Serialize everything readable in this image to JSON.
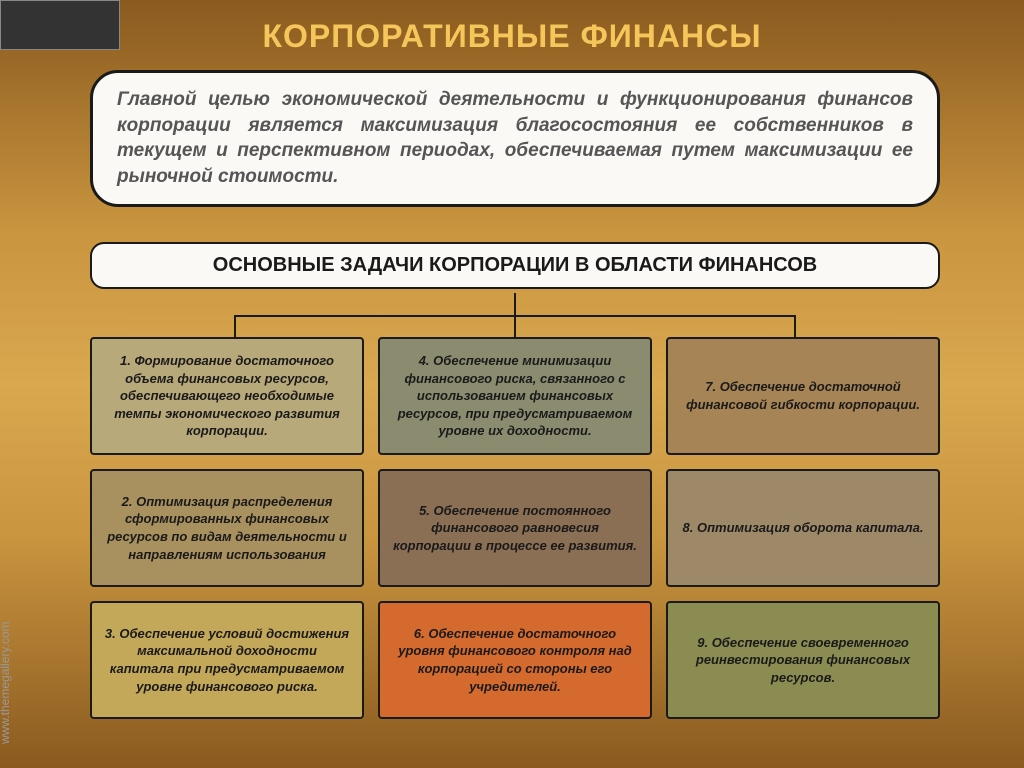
{
  "title": "КОРПОРАТИВНЫЕ ФИНАНСЫ",
  "intro": "Главной целью экономической деятельности и функционирования финансов корпорации является максимизация благосостояния ее собственников в текущем и перспективном периодах, обеспечиваемая путем максимизации ее рыночной стоимости.",
  "subheader": "ОСНОВНЫЕ ЗАДАЧИ КОРПОРАЦИИ В ОБЛАСТИ ФИНАНСОВ",
  "watermark": "www.themegallery.com",
  "grid": {
    "cells": [
      {
        "text": "1. Формирование достаточного объема финансовых ресурсов, обеспечивающего необходимые темпы экономического развития корпорации.",
        "bg": "#b8a97a"
      },
      {
        "text": "4. Обеспечение минимизации финансового риска, связанного с использованием финансовых ресурсов, при предусматриваемом уровне их доходности.",
        "bg": "#8b8c6f"
      },
      {
        "text": "7. Обеспечение достаточной финансовой гибкости корпорации.",
        "bg": "#a68456"
      },
      {
        "text": "2. Оптимизация распределения сформированных финансовых ресурсов по видам деятельности и направлениям использования",
        "bg": "#a9915f"
      },
      {
        "text": "5. Обеспечение постоянного финансового равновесия корпорации в процессе ее развития.",
        "bg": "#8a6f54"
      },
      {
        "text": "8. Оптимизация оборота капитала.",
        "bg": "#9d8868"
      },
      {
        "text": "3. Обеспечение условий достижения максимальной доходности капитала при предусматриваемом уровне финансового риска.",
        "bg": "#c4a85a"
      },
      {
        "text": "6. Обеспечение достаточного уровня финансового контроля над корпорацией со стороны его учредителей.",
        "bg": "#d56a2e"
      },
      {
        "text": "9. Обеспечение своевременного реинвестирования финансовых ресурсов.",
        "bg": "#8b8c52"
      }
    ],
    "border_color": "#1a1a1a",
    "font_size": 13
  },
  "colors": {
    "title": "#f5c65a",
    "intro_text": "#555555",
    "box_bg": "#fbf9f5",
    "box_border": "#1a1a1a",
    "bg_gradient_top": "#8a5a1f",
    "bg_gradient_mid": "#d9a84f"
  }
}
